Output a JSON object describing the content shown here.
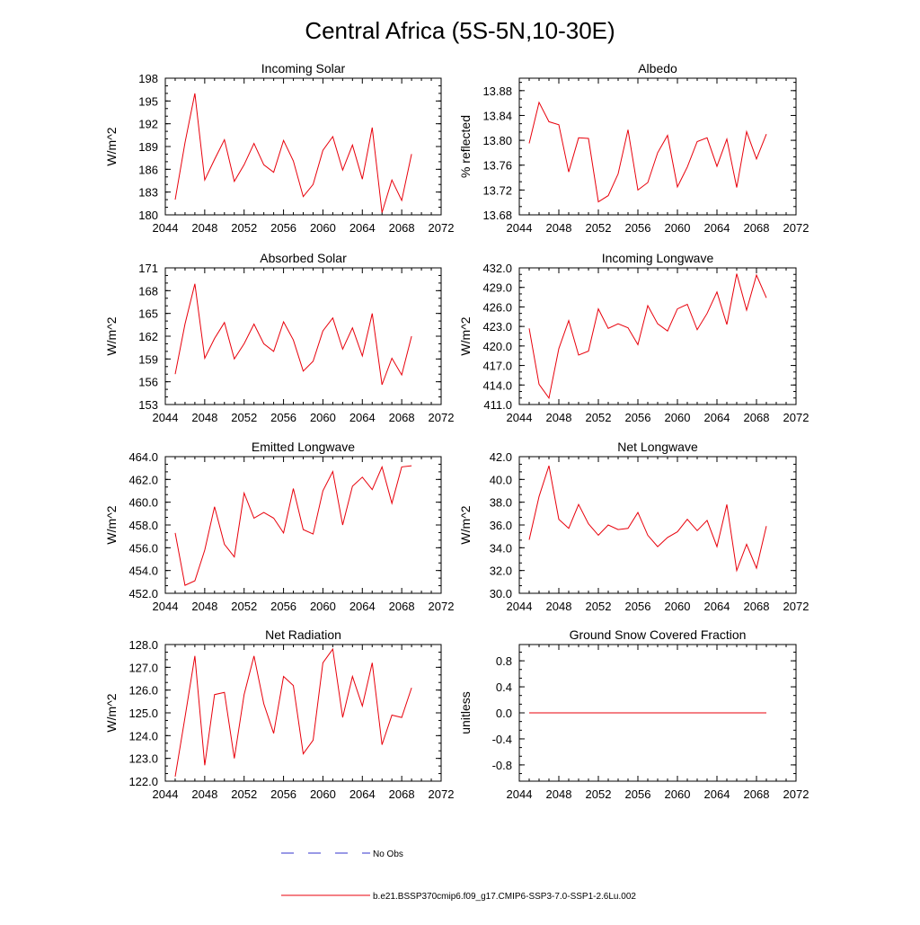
{
  "figure": {
    "title": "Central Africa (5S-5N,10-30E)",
    "line_color": "#e8000b",
    "obs_color": "#3333cc"
  },
  "legend": {
    "placement": "bottom-center",
    "items": [
      {
        "label": "No Obs",
        "style": "dashed",
        "color": "#3333cc"
      },
      {
        "label": "b.e21.BSSP370cmip6.f09_g17.CMIP6-SSP3-7.0-SSP1-2.6Lu.002",
        "style": "solid",
        "color": "#e8000b"
      }
    ]
  },
  "chart_data": [
    {
      "type": "line",
      "title": "Incoming Solar",
      "ylabel": "W/m^2",
      "xlabel": "",
      "xlim": [
        2044,
        2072
      ],
      "ylim": [
        180,
        198
      ],
      "xticks": [
        "2044",
        "2048",
        "2052",
        "2056",
        "2060",
        "2064",
        "2068",
        "2072"
      ],
      "yticks": [
        "180",
        "183",
        "186",
        "189",
        "192",
        "195",
        "198"
      ],
      "x": [
        2045,
        2046,
        2047,
        2048,
        2049,
        2050,
        2051,
        2052,
        2053,
        2054,
        2055,
        2056,
        2057,
        2058,
        2059,
        2060,
        2061,
        2062,
        2063,
        2064,
        2065,
        2066,
        2067,
        2068,
        2069
      ],
      "values": [
        182.0,
        189.5,
        196.0,
        184.6,
        187.3,
        189.9,
        184.4,
        186.6,
        189.4,
        186.6,
        185.6,
        189.8,
        187.1,
        182.4,
        184.0,
        188.5,
        190.3,
        185.9,
        189.2,
        184.7,
        191.5,
        180.3,
        184.6,
        181.9,
        188.0
      ]
    },
    {
      "type": "line",
      "title": "Albedo",
      "ylabel": "% reflected",
      "xlabel": "",
      "xlim": [
        2044,
        2072
      ],
      "ylim": [
        13.68,
        13.9
      ],
      "xticks": [
        "2044",
        "2048",
        "2052",
        "2056",
        "2060",
        "2064",
        "2068",
        "2072"
      ],
      "yticks": [
        "13.68",
        "13.72",
        "13.76",
        "13.80",
        "13.84",
        "13.88"
      ],
      "x": [
        2045,
        2046,
        2047,
        2048,
        2049,
        2050,
        2051,
        2052,
        2053,
        2054,
        2055,
        2056,
        2057,
        2058,
        2059,
        2060,
        2061,
        2062,
        2063,
        2064,
        2065,
        2066,
        2067,
        2068,
        2069
      ],
      "values": [
        13.795,
        13.861,
        13.83,
        13.825,
        13.749,
        13.804,
        13.803,
        13.701,
        13.711,
        13.746,
        13.817,
        13.72,
        13.732,
        13.78,
        13.808,
        13.725,
        13.757,
        13.798,
        13.804,
        13.758,
        13.802,
        13.724,
        13.814,
        13.77,
        13.81
      ]
    },
    {
      "type": "line",
      "title": "Absorbed Solar",
      "ylabel": "W/m^2",
      "xlabel": "",
      "xlim": [
        2044,
        2072
      ],
      "ylim": [
        153,
        171
      ],
      "xticks": [
        "2044",
        "2048",
        "2052",
        "2056",
        "2060",
        "2064",
        "2068",
        "2072"
      ],
      "yticks": [
        "153",
        "156",
        "159",
        "162",
        "165",
        "168",
        "171"
      ],
      "x": [
        2045,
        2046,
        2047,
        2048,
        2049,
        2050,
        2051,
        2052,
        2053,
        2054,
        2055,
        2056,
        2057,
        2058,
        2059,
        2060,
        2061,
        2062,
        2063,
        2064,
        2065,
        2066,
        2067,
        2068,
        2069
      ],
      "values": [
        157.0,
        163.6,
        168.9,
        159.1,
        161.7,
        163.8,
        159.0,
        161.0,
        163.6,
        161.0,
        160.0,
        163.9,
        161.5,
        157.4,
        158.7,
        162.7,
        164.4,
        160.3,
        163.1,
        159.4,
        165.0,
        155.6,
        159.1,
        156.9,
        162.0
      ]
    },
    {
      "type": "line",
      "title": "Incoming Longwave",
      "ylabel": "W/m^2",
      "xlabel": "",
      "xlim": [
        2044,
        2072
      ],
      "ylim": [
        411.0,
        432.0
      ],
      "xticks": [
        "2044",
        "2048",
        "2052",
        "2056",
        "2060",
        "2064",
        "2068",
        "2072"
      ],
      "yticks": [
        "411.0",
        "414.0",
        "417.0",
        "420.0",
        "423.0",
        "426.0",
        "429.0",
        "432.0"
      ],
      "x": [
        2045,
        2046,
        2047,
        2048,
        2049,
        2050,
        2051,
        2052,
        2053,
        2054,
        2055,
        2056,
        2057,
        2058,
        2059,
        2060,
        2061,
        2062,
        2063,
        2064,
        2065,
        2066,
        2067,
        2068,
        2069
      ],
      "values": [
        422.7,
        414.1,
        412.0,
        419.6,
        423.9,
        418.6,
        419.2,
        425.7,
        422.7,
        423.4,
        422.8,
        420.2,
        426.2,
        423.4,
        422.3,
        425.7,
        426.4,
        422.5,
        425.0,
        428.3,
        423.3,
        431.1,
        425.5,
        430.9,
        427.4
      ]
    },
    {
      "type": "line",
      "title": "Emitted Longwave",
      "ylabel": "W/m^2",
      "xlabel": "",
      "xlim": [
        2044,
        2072
      ],
      "ylim": [
        452.0,
        464.0
      ],
      "xticks": [
        "2044",
        "2048",
        "2052",
        "2056",
        "2060",
        "2064",
        "2068",
        "2072"
      ],
      "yticks": [
        "452.0",
        "454.0",
        "456.0",
        "458.0",
        "460.0",
        "462.0",
        "464.0"
      ],
      "x": [
        2045,
        2046,
        2047,
        2048,
        2049,
        2050,
        2051,
        2052,
        2053,
        2054,
        2055,
        2056,
        2057,
        2058,
        2059,
        2060,
        2061,
        2062,
        2063,
        2064,
        2065,
        2066,
        2067,
        2068,
        2069
      ],
      "values": [
        457.3,
        452.7,
        453.1,
        455.8,
        459.6,
        456.3,
        455.2,
        460.8,
        458.6,
        459.1,
        458.6,
        457.3,
        461.2,
        457.6,
        457.2,
        461.0,
        462.7,
        458.0,
        461.4,
        462.2,
        461.1,
        463.1,
        459.9,
        463.1,
        463.2
      ]
    },
    {
      "type": "line",
      "title": "Net Longwave",
      "ylabel": "W/m^2",
      "xlabel": "",
      "xlim": [
        2044,
        2072
      ],
      "ylim": [
        30.0,
        42.0
      ],
      "xticks": [
        "2044",
        "2048",
        "2052",
        "2056",
        "2060",
        "2064",
        "2068",
        "2072"
      ],
      "yticks": [
        "30.0",
        "32.0",
        "34.0",
        "36.0",
        "38.0",
        "40.0",
        "42.0"
      ],
      "x": [
        2045,
        2046,
        2047,
        2048,
        2049,
        2050,
        2051,
        2052,
        2053,
        2054,
        2055,
        2056,
        2057,
        2058,
        2059,
        2060,
        2061,
        2062,
        2063,
        2064,
        2065,
        2066,
        2067,
        2068,
        2069
      ],
      "values": [
        34.7,
        38.5,
        41.2,
        36.5,
        35.7,
        37.8,
        36.1,
        35.1,
        36.0,
        35.6,
        35.7,
        37.1,
        35.1,
        34.1,
        34.9,
        35.4,
        36.5,
        35.5,
        36.4,
        34.1,
        37.8,
        32.0,
        34.3,
        32.2,
        35.9
      ]
    },
    {
      "type": "line",
      "title": "Net Radiation",
      "ylabel": "W/m^2",
      "xlabel": "",
      "xlim": [
        2044,
        2072
      ],
      "ylim": [
        122.0,
        128.0
      ],
      "xticks": [
        "2044",
        "2048",
        "2052",
        "2056",
        "2060",
        "2064",
        "2068",
        "2072"
      ],
      "yticks": [
        "122.0",
        "123.0",
        "124.0",
        "125.0",
        "126.0",
        "127.0",
        "128.0"
      ],
      "x": [
        2045,
        2046,
        2047,
        2048,
        2049,
        2050,
        2051,
        2052,
        2053,
        2054,
        2055,
        2056,
        2057,
        2058,
        2059,
        2060,
        2061,
        2062,
        2063,
        2064,
        2065,
        2066,
        2067,
        2068,
        2069
      ],
      "values": [
        122.2,
        124.8,
        127.5,
        122.7,
        125.8,
        125.9,
        123.0,
        125.8,
        127.5,
        125.4,
        124.1,
        126.6,
        126.2,
        123.2,
        123.8,
        127.2,
        127.8,
        124.8,
        126.6,
        125.3,
        127.2,
        123.6,
        124.9,
        124.8,
        126.1
      ]
    },
    {
      "type": "line",
      "title": "Ground Snow Covered Fraction",
      "ylabel": "unitless",
      "xlabel": "",
      "xlim": [
        2044,
        2072
      ],
      "ylim": [
        -1.05,
        1.05
      ],
      "xticks": [
        "2044",
        "2048",
        "2052",
        "2056",
        "2060",
        "2064",
        "2068",
        "2072"
      ],
      "yticks": [
        "-0.8",
        "-0.4",
        "0.0",
        "0.4",
        "0.8"
      ],
      "x": [
        2045,
        2046,
        2047,
        2048,
        2049,
        2050,
        2051,
        2052,
        2053,
        2054,
        2055,
        2056,
        2057,
        2058,
        2059,
        2060,
        2061,
        2062,
        2063,
        2064,
        2065,
        2066,
        2067,
        2068,
        2069
      ],
      "values": [
        0,
        0,
        0,
        0,
        0,
        0,
        0,
        0,
        0,
        0,
        0,
        0,
        0,
        0,
        0,
        0,
        0,
        0,
        0,
        0,
        0,
        0,
        0,
        0,
        0
      ]
    }
  ]
}
